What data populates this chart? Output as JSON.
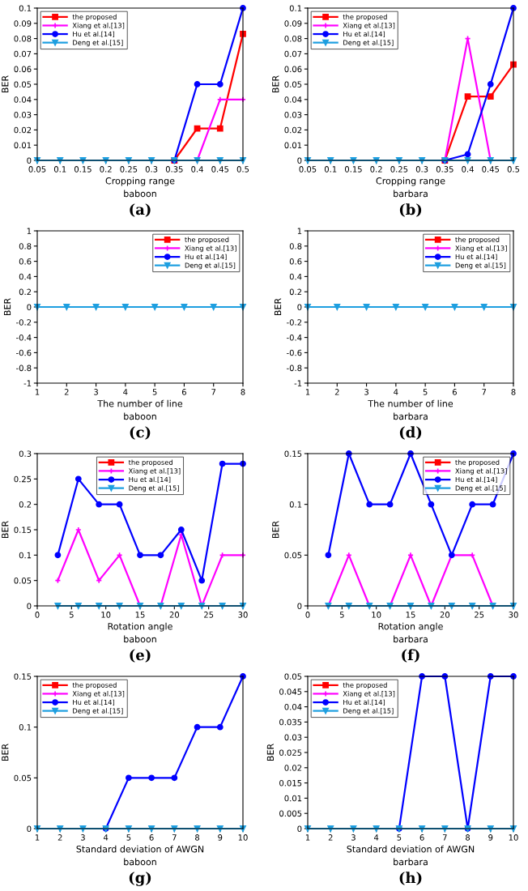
{
  "chart_data": [
    {
      "type": "line",
      "xlabel": "Cropping range\nbaboon",
      "ylabel": "BER",
      "annotations": [
        "(a)"
      ],
      "legend": "top left",
      "x": [
        0.05,
        0.1,
        0.15,
        0.2,
        0.25,
        0.3,
        0.35,
        0.4,
        0.45,
        0.5
      ],
      "xlim": [
        0.05,
        0.5
      ],
      "xticks": [
        0.05,
        0.1,
        0.15,
        0.2,
        0.25,
        0.3,
        0.35,
        0.4,
        0.45,
        0.5
      ],
      "ylim": [
        0,
        0.1
      ],
      "yticks": [
        0,
        0.01,
        0.02,
        0.03,
        0.04,
        0.05,
        0.06,
        0.07,
        0.08,
        0.09,
        0.1
      ],
      "series": [
        {
          "name": "the proposed",
          "color": "#ff0000",
          "marker": "square",
          "values": [
            null,
            null,
            null,
            null,
            null,
            null,
            0,
            0.021,
            0.021,
            0.083
          ]
        },
        {
          "name": "Xiang et al.[13]",
          "color": "#ff00ff",
          "marker": "cross",
          "values": [
            null,
            null,
            null,
            null,
            null,
            null,
            null,
            0,
            0.04,
            0.04
          ]
        },
        {
          "name": "Hu et al.[14]",
          "color": "#0000ff",
          "marker": "circle",
          "values": [
            null,
            null,
            null,
            null,
            null,
            null,
            0,
            0.05,
            0.05,
            0.1
          ]
        },
        {
          "name": "Deng et al.[15]",
          "color": "#1e9fe0",
          "marker": "triangle",
          "values": [
            0,
            0,
            0,
            0,
            0,
            0,
            0,
            0,
            0,
            0
          ]
        }
      ]
    },
    {
      "type": "line",
      "xlabel": "Cropping range\nbarbara",
      "ylabel": "BER",
      "annotations": [
        "(b)"
      ],
      "legend": "top left",
      "x": [
        0.05,
        0.1,
        0.15,
        0.2,
        0.25,
        0.3,
        0.35,
        0.4,
        0.45,
        0.5
      ],
      "xlim": [
        0.05,
        0.5
      ],
      "xticks": [
        0.05,
        0.1,
        0.15,
        0.2,
        0.25,
        0.3,
        0.35,
        0.4,
        0.45,
        0.5
      ],
      "ylim": [
        0,
        0.1
      ],
      "yticks": [
        0,
        0.01,
        0.02,
        0.03,
        0.04,
        0.05,
        0.06,
        0.07,
        0.08,
        0.09,
        0.1
      ],
      "series": [
        {
          "name": "the proposed",
          "color": "#ff0000",
          "marker": "square",
          "values": [
            null,
            null,
            null,
            null,
            null,
            null,
            0,
            0.042,
            0.042,
            0.063
          ]
        },
        {
          "name": "Xiang et al.[13]",
          "color": "#ff00ff",
          "marker": "cross",
          "values": [
            null,
            null,
            null,
            null,
            null,
            null,
            0,
            0.08,
            0,
            null
          ]
        },
        {
          "name": "Hu et al.[14]",
          "color": "#0000ff",
          "marker": "circle",
          "values": [
            null,
            null,
            null,
            null,
            null,
            null,
            0,
            0.004,
            0.05,
            0.1
          ]
        },
        {
          "name": "Deng et al.[15]",
          "color": "#1e9fe0",
          "marker": "triangle",
          "values": [
            0,
            0,
            0,
            0,
            0,
            0,
            0,
            0,
            0,
            0
          ]
        }
      ]
    },
    {
      "type": "line",
      "xlabel": "The number of line\nbaboon",
      "ylabel": "BER",
      "annotations": [
        "(c)"
      ],
      "legend": "top right",
      "x": [
        1,
        2,
        3,
        4,
        5,
        6,
        7,
        8
      ],
      "xlim": [
        1,
        8
      ],
      "xticks": [
        1,
        2,
        3,
        4,
        5,
        6,
        7,
        8
      ],
      "ylim": [
        -1,
        1
      ],
      "yticks": [
        -1,
        -0.8,
        -0.6,
        -0.4,
        -0.2,
        0,
        0.2,
        0.4,
        0.6,
        0.8,
        1
      ],
      "series": [
        {
          "name": "the proposed",
          "color": "#ff0000",
          "marker": "square",
          "values": [
            null,
            null,
            null,
            null,
            null,
            null,
            null,
            null
          ]
        },
        {
          "name": "Xiang et al.[13]",
          "color": "#ff00ff",
          "marker": "cross",
          "values": [
            null,
            null,
            null,
            null,
            null,
            null,
            null,
            null
          ]
        },
        {
          "name": "Hu et al.[14]",
          "color": "#0000ff",
          "marker": "circle",
          "values": [
            null,
            null,
            null,
            null,
            null,
            null,
            null,
            null
          ]
        },
        {
          "name": "Deng et al.[15]",
          "color": "#1e9fe0",
          "marker": "triangle",
          "values": [
            0,
            0,
            0,
            0,
            0,
            0,
            0,
            0
          ]
        }
      ]
    },
    {
      "type": "line",
      "xlabel": "The number of line\nbarbara",
      "ylabel": "BER",
      "annotations": [
        "(d)"
      ],
      "legend": "top right",
      "x": [
        1,
        2,
        3,
        4,
        5,
        6,
        7,
        8
      ],
      "xlim": [
        1,
        8
      ],
      "xticks": [
        1,
        2,
        3,
        4,
        5,
        6,
        7,
        8
      ],
      "ylim": [
        -1,
        1
      ],
      "yticks": [
        -1,
        -0.8,
        -0.6,
        -0.4,
        -0.2,
        0,
        0.2,
        0.4,
        0.6,
        0.8,
        1
      ],
      "series": [
        {
          "name": "the proposed",
          "color": "#ff0000",
          "marker": "square",
          "values": [
            null,
            null,
            null,
            null,
            null,
            null,
            null,
            null
          ]
        },
        {
          "name": "Xiang et al.[13]",
          "color": "#ff00ff",
          "marker": "cross",
          "values": [
            null,
            null,
            null,
            null,
            null,
            null,
            null,
            null
          ]
        },
        {
          "name": "Hu et al.[14]",
          "color": "#0000ff",
          "marker": "circle",
          "values": [
            null,
            null,
            null,
            null,
            null,
            null,
            null,
            null
          ]
        },
        {
          "name": "Deng et al.[15]",
          "color": "#1e9fe0",
          "marker": "triangle",
          "values": [
            0,
            0,
            0,
            0,
            0,
            0,
            0,
            0
          ]
        }
      ]
    },
    {
      "type": "line",
      "xlabel": "Rotation angle\nbaboon",
      "ylabel": "BER",
      "annotations": [
        "(e)"
      ],
      "legend": "top",
      "x": [
        3,
        6,
        9,
        12,
        15,
        18,
        21,
        24,
        27,
        30
      ],
      "xlim": [
        0,
        30
      ],
      "xticks": [
        0,
        5,
        10,
        15,
        20,
        25,
        30
      ],
      "ylim": [
        0,
        0.3
      ],
      "yticks": [
        0,
        0.05,
        0.1,
        0.15,
        0.2,
        0.25,
        0.3
      ],
      "series": [
        {
          "name": "the proposed",
          "color": "#ff0000",
          "marker": "square",
          "values": [
            null,
            null,
            null,
            null,
            null,
            null,
            null,
            null,
            null,
            null
          ]
        },
        {
          "name": "Xiang et al.[13]",
          "color": "#ff00ff",
          "marker": "cross",
          "values": [
            0.05,
            0.15,
            0.05,
            0.1,
            0,
            0,
            0.14,
            0,
            0.1,
            0.1
          ]
        },
        {
          "name": "Hu et al.[14]",
          "color": "#0000ff",
          "marker": "circle",
          "values": [
            0.1,
            0.25,
            0.2,
            0.2,
            0.1,
            0.1,
            0.15,
            0.05,
            0.28,
            0.28
          ]
        },
        {
          "name": "Deng et al.[15]",
          "color": "#1e9fe0",
          "marker": "triangle",
          "values": [
            0,
            0,
            0,
            0,
            0,
            0,
            0,
            0,
            0,
            0
          ]
        }
      ]
    },
    {
      "type": "line",
      "xlabel": "Rotation angle\nbarbara",
      "ylabel": "BER",
      "annotations": [
        "(f)"
      ],
      "legend": "top right",
      "x": [
        3,
        6,
        9,
        12,
        15,
        18,
        21,
        24,
        27,
        30
      ],
      "xlim": [
        0,
        30
      ],
      "xticks": [
        0,
        5,
        10,
        15,
        20,
        25,
        30
      ],
      "ylim": [
        0,
        0.15
      ],
      "yticks": [
        0,
        0.05,
        0.1,
        0.15
      ],
      "series": [
        {
          "name": "the proposed",
          "color": "#ff0000",
          "marker": "square",
          "values": [
            null,
            null,
            null,
            null,
            null,
            null,
            null,
            null,
            null,
            null
          ]
        },
        {
          "name": "Xiang et al.[13]",
          "color": "#ff00ff",
          "marker": "cross",
          "values": [
            0,
            0.05,
            0,
            0,
            0.05,
            0,
            0.05,
            0.05,
            0,
            null
          ]
        },
        {
          "name": "Hu et al.[14]",
          "color": "#0000ff",
          "marker": "circle",
          "values": [
            0.05,
            0.15,
            0.1,
            0.1,
            0.15,
            0.1,
            0.05,
            0.1,
            0.1,
            0.15
          ]
        },
        {
          "name": "Deng et al.[15]",
          "color": "#1e9fe0",
          "marker": "triangle",
          "values": [
            0,
            0,
            0,
            0,
            0,
            0,
            0,
            0,
            0,
            0
          ]
        }
      ]
    },
    {
      "type": "line",
      "xlabel": "Standard deviation of AWGN\nbaboon",
      "ylabel": "BER",
      "annotations": [
        "(g)"
      ],
      "legend": "top left",
      "x": [
        1,
        2,
        3,
        4,
        5,
        6,
        7,
        8,
        9,
        10
      ],
      "xlim": [
        1,
        10
      ],
      "xticks": [
        1,
        2,
        3,
        4,
        5,
        6,
        7,
        8,
        9,
        10
      ],
      "ylim": [
        0,
        0.15
      ],
      "yticks": [
        0,
        0.05,
        0.1,
        0.15
      ],
      "series": [
        {
          "name": "the proposed",
          "color": "#ff0000",
          "marker": "square",
          "values": [
            null,
            null,
            null,
            null,
            null,
            null,
            null,
            null,
            null,
            null
          ]
        },
        {
          "name": "Xiang et al.[13]",
          "color": "#ff00ff",
          "marker": "cross",
          "values": [
            null,
            null,
            null,
            null,
            null,
            null,
            null,
            null,
            null,
            null
          ]
        },
        {
          "name": "Hu et al.[14]",
          "color": "#0000ff",
          "marker": "circle",
          "values": [
            null,
            null,
            null,
            0,
            0.05,
            0.05,
            0.05,
            0.1,
            0.1,
            0.15
          ]
        },
        {
          "name": "Deng et al.[15]",
          "color": "#1e9fe0",
          "marker": "triangle",
          "values": [
            0,
            0,
            0,
            0,
            0,
            0,
            0,
            0,
            0,
            0
          ]
        }
      ]
    },
    {
      "type": "line",
      "xlabel": "Standard deviation of AWGN\nbarbara",
      "ylabel": "BER",
      "annotations": [
        "(h)"
      ],
      "legend": "top left",
      "x": [
        1,
        2,
        3,
        4,
        5,
        6,
        7,
        8,
        9,
        10
      ],
      "xlim": [
        1,
        10
      ],
      "xticks": [
        1,
        2,
        3,
        4,
        5,
        6,
        7,
        8,
        9,
        10
      ],
      "ylim": [
        0,
        0.05
      ],
      "yticks": [
        0,
        0.005,
        0.01,
        0.015,
        0.02,
        0.025,
        0.03,
        0.035,
        0.04,
        0.045,
        0.05
      ],
      "series": [
        {
          "name": "the proposed",
          "color": "#ff0000",
          "marker": "square",
          "values": [
            null,
            null,
            null,
            null,
            null,
            null,
            null,
            null,
            null,
            null
          ]
        },
        {
          "name": "Xiang et al.[13]",
          "color": "#ff00ff",
          "marker": "cross",
          "values": [
            null,
            null,
            null,
            null,
            null,
            null,
            null,
            null,
            null,
            null
          ]
        },
        {
          "name": "Hu et al.[14]",
          "color": "#0000ff",
          "marker": "circle",
          "values": [
            null,
            null,
            null,
            null,
            0,
            0.05,
            0.05,
            0,
            0.05,
            0.05
          ]
        },
        {
          "name": "Deng et al.[15]",
          "color": "#1e9fe0",
          "marker": "triangle",
          "values": [
            0,
            0,
            0,
            0,
            0,
            0,
            0,
            0,
            0,
            0
          ]
        }
      ]
    }
  ]
}
